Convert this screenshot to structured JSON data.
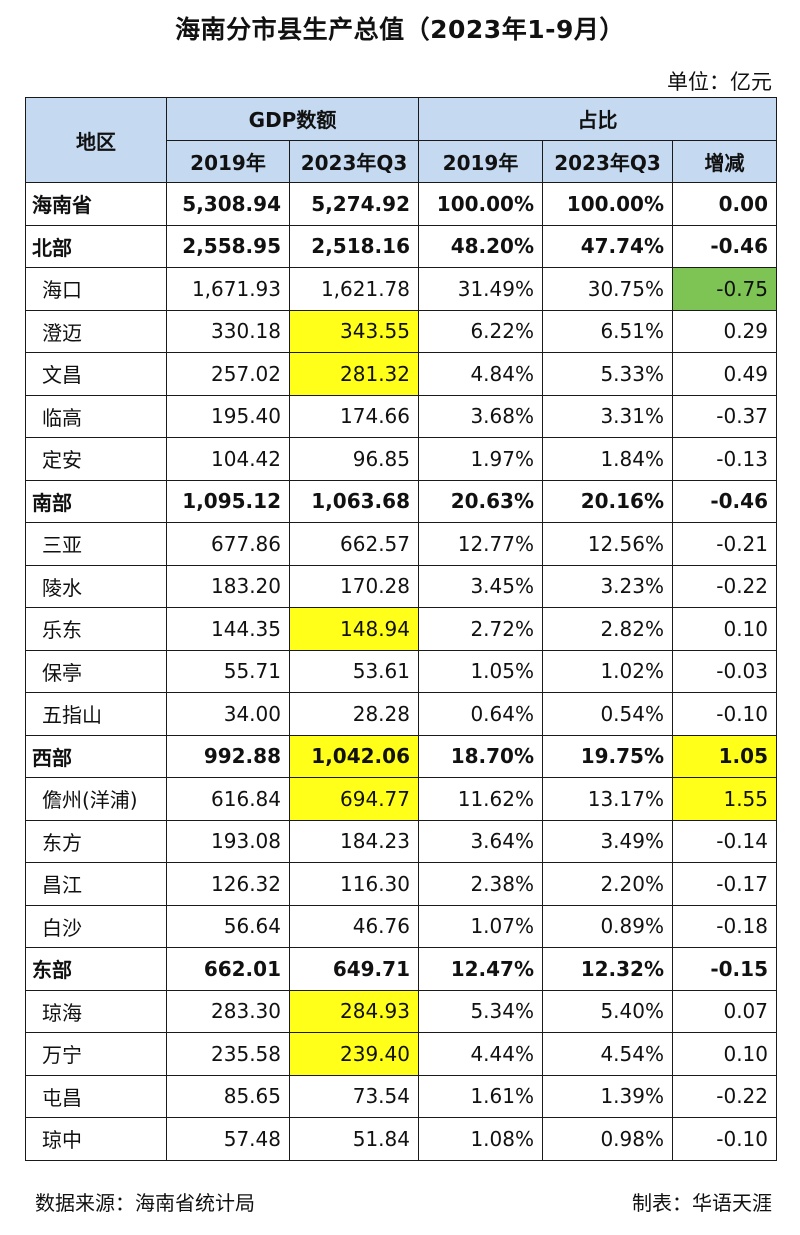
{
  "title": "海南分市县生产总值（2023年1-9月）",
  "unit": "单位：亿元",
  "source": "数据来源：海南省统计局",
  "author": "制表：华语天涯",
  "colors": {
    "header_bg": "#c5d9f1",
    "highlight_yellow": "#ffff1a",
    "highlight_green": "#7dc454"
  },
  "headers": {
    "region": "地区",
    "gdp_group": "GDP数额",
    "share_group": "占比",
    "col_2019": "2019年",
    "col_2023": "2023年Q3",
    "share_2019": "2019年",
    "share_2023": "2023年Q3",
    "change": "增减"
  },
  "chart_data": {
    "type": "table",
    "title": "海南分市县生产总值（2023年1-9月）",
    "unit": "亿元",
    "columns": [
      "地区",
      "GDP 2019年",
      "GDP 2023年Q3",
      "占比 2019年",
      "占比 2023年Q3",
      "增减"
    ],
    "rows": [
      {
        "name": "海南省",
        "bold": true,
        "gdp2019": "5,308.94",
        "gdp2023": "5,274.92",
        "s2019": "100.00%",
        "s2023": "100.00%",
        "change": "0.00"
      },
      {
        "name": "北部",
        "bold": true,
        "gdp2019": "2,558.95",
        "gdp2023": "2,518.16",
        "s2019": "48.20%",
        "s2023": "47.74%",
        "change": "-0.46"
      },
      {
        "name": "海口",
        "gdp2019": "1,671.93",
        "gdp2023": "1,621.78",
        "s2019": "31.49%",
        "s2023": "30.75%",
        "change": "-0.75",
        "hl_change": "green"
      },
      {
        "name": "澄迈",
        "gdp2019": "330.18",
        "gdp2023": "343.55",
        "s2019": "6.22%",
        "s2023": "6.51%",
        "change": "0.29",
        "hl_gdp2023": "yellow"
      },
      {
        "name": "文昌",
        "gdp2019": "257.02",
        "gdp2023": "281.32",
        "s2019": "4.84%",
        "s2023": "5.33%",
        "change": "0.49",
        "hl_gdp2023": "yellow"
      },
      {
        "name": "临高",
        "gdp2019": "195.40",
        "gdp2023": "174.66",
        "s2019": "3.68%",
        "s2023": "3.31%",
        "change": "-0.37"
      },
      {
        "name": "定安",
        "gdp2019": "104.42",
        "gdp2023": "96.85",
        "s2019": "1.97%",
        "s2023": "1.84%",
        "change": "-0.13"
      },
      {
        "name": "南部",
        "bold": true,
        "gdp2019": "1,095.12",
        "gdp2023": "1,063.68",
        "s2019": "20.63%",
        "s2023": "20.16%",
        "change": "-0.46"
      },
      {
        "name": "三亚",
        "gdp2019": "677.86",
        "gdp2023": "662.57",
        "s2019": "12.77%",
        "s2023": "12.56%",
        "change": "-0.21"
      },
      {
        "name": "陵水",
        "gdp2019": "183.20",
        "gdp2023": "170.28",
        "s2019": "3.45%",
        "s2023": "3.23%",
        "change": "-0.22"
      },
      {
        "name": "乐东",
        "gdp2019": "144.35",
        "gdp2023": "148.94",
        "s2019": "2.72%",
        "s2023": "2.82%",
        "change": "0.10",
        "hl_gdp2023": "yellow"
      },
      {
        "name": "保亭",
        "gdp2019": "55.71",
        "gdp2023": "53.61",
        "s2019": "1.05%",
        "s2023": "1.02%",
        "change": "-0.03"
      },
      {
        "name": "五指山",
        "gdp2019": "34.00",
        "gdp2023": "28.28",
        "s2019": "0.64%",
        "s2023": "0.54%",
        "change": "-0.10"
      },
      {
        "name": "西部",
        "bold": true,
        "gdp2019": "992.88",
        "gdp2023": "1,042.06",
        "s2019": "18.70%",
        "s2023": "19.75%",
        "change": "1.05",
        "hl_gdp2023": "yellow",
        "hl_change": "yellow"
      },
      {
        "name": "儋州(洋浦)",
        "gdp2019": "616.84",
        "gdp2023": "694.77",
        "s2019": "11.62%",
        "s2023": "13.17%",
        "change": "1.55",
        "hl_gdp2023": "yellow",
        "hl_change": "yellow"
      },
      {
        "name": "东方",
        "gdp2019": "193.08",
        "gdp2023": "184.23",
        "s2019": "3.64%",
        "s2023": "3.49%",
        "change": "-0.14"
      },
      {
        "name": "昌江",
        "gdp2019": "126.32",
        "gdp2023": "116.30",
        "s2019": "2.38%",
        "s2023": "2.20%",
        "change": "-0.17"
      },
      {
        "name": "白沙",
        "gdp2019": "56.64",
        "gdp2023": "46.76",
        "s2019": "1.07%",
        "s2023": "0.89%",
        "change": "-0.18"
      },
      {
        "name": "东部",
        "bold": true,
        "gdp2019": "662.01",
        "gdp2023": "649.71",
        "s2019": "12.47%",
        "s2023": "12.32%",
        "change": "-0.15"
      },
      {
        "name": "琼海",
        "gdp2019": "283.30",
        "gdp2023": "284.93",
        "s2019": "5.34%",
        "s2023": "5.40%",
        "change": "0.07",
        "hl_gdp2023": "yellow"
      },
      {
        "name": "万宁",
        "gdp2019": "235.58",
        "gdp2023": "239.40",
        "s2019": "4.44%",
        "s2023": "4.54%",
        "change": "0.10",
        "hl_gdp2023": "yellow"
      },
      {
        "name": "屯昌",
        "gdp2019": "85.65",
        "gdp2023": "73.54",
        "s2019": "1.61%",
        "s2023": "1.39%",
        "change": "-0.22"
      },
      {
        "name": "琼中",
        "gdp2019": "57.48",
        "gdp2023": "51.84",
        "s2019": "1.08%",
        "s2023": "0.98%",
        "change": "-0.10"
      }
    ]
  }
}
